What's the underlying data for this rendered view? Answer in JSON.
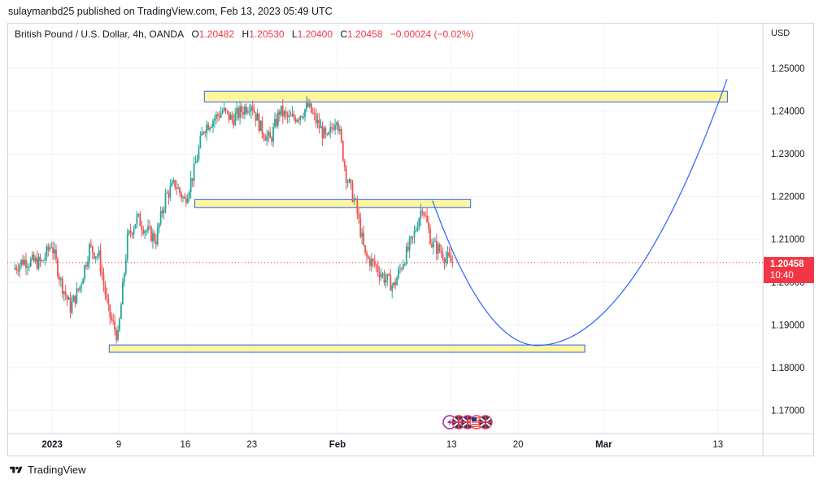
{
  "header": {
    "publisher_line": "sulaymanbd25 published on TradingView.com, Feb 13, 2023 05:49 UTC"
  },
  "legend": {
    "symbol": "British Pound / U.S. Dollar, 4h, OANDA",
    "open_label": "O",
    "open": "1.20482",
    "high_label": "H",
    "high": "1.20530",
    "low_label": "L",
    "low": "1.20400",
    "close_label": "C",
    "close": "1.20458",
    "change": "−0.00024 (−0.02%)"
  },
  "axis": {
    "currency": "USD",
    "current_price": "1.20458",
    "countdown": "10:40"
  },
  "footer": {
    "brand": "TradingView"
  },
  "event_icons": [
    "lightning-icon",
    "uk-flag-icon",
    "uk-flag-icon",
    "us-flag-icon",
    "uk-flag-icon"
  ],
  "colors": {
    "up": "#26a69a",
    "down": "#ef5350",
    "zone_fill": "#fff59d",
    "zone_border": "#2962ff",
    "projection": "#2962ff",
    "price_line": "#f23645"
  },
  "chart_data": {
    "type": "candlestick",
    "symbol": "GBPUSD",
    "timeframe": "4h",
    "ylim": [
      1.1646,
      1.2606
    ],
    "y_ticks": [
      1.17,
      1.18,
      1.19,
      1.2,
      1.21,
      1.22,
      1.23,
      1.24,
      1.25
    ],
    "y_tick_labels": [
      "1.17000",
      "1.18000",
      "1.19000",
      "1.20000",
      "1.21000",
      "1.22000",
      "1.23000",
      "1.24000",
      "1.25000"
    ],
    "x_ticks": [
      {
        "label": "2023",
        "date": "2023-01-02",
        "bold": true
      },
      {
        "label": "9",
        "date": "2023-01-09"
      },
      {
        "label": "16",
        "date": "2023-01-16"
      },
      {
        "label": "23",
        "date": "2023-01-23"
      },
      {
        "label": "Feb",
        "date": "2023-02-01",
        "bold": true
      },
      {
        "label": "13",
        "date": "2023-02-13"
      },
      {
        "label": "20",
        "date": "2023-02-20"
      },
      {
        "label": "Mar",
        "date": "2023-03-01",
        "bold": true
      },
      {
        "label": "13",
        "date": "2023-03-13"
      }
    ],
    "price_path": [
      [
        "2022-12-29",
        1.203
      ],
      [
        "2022-12-30",
        1.205
      ],
      [
        "2023-01-01",
        1.2045
      ],
      [
        "2023-01-02",
        1.209
      ],
      [
        "2023-01-03",
        1.2
      ],
      [
        "2023-01-04",
        1.194
      ],
      [
        "2023-01-05",
        1.199
      ],
      [
        "2023-01-06",
        1.208
      ],
      [
        "2023-01-07",
        1.206
      ],
      [
        "2023-01-08",
        1.193
      ],
      [
        "2023-01-09",
        1.187
      ],
      [
        "2023-01-10",
        1.21
      ],
      [
        "2023-01-11",
        1.215
      ],
      [
        "2023-01-12",
        1.212
      ],
      [
        "2023-01-13",
        1.21
      ],
      [
        "2023-01-14",
        1.22
      ],
      [
        "2023-01-15",
        1.223
      ],
      [
        "2023-01-16",
        1.219
      ],
      [
        "2023-01-17",
        1.226
      ],
      [
        "2023-01-18",
        1.236
      ],
      [
        "2023-01-19",
        1.238
      ],
      [
        "2023-01-20",
        1.24
      ],
      [
        "2023-01-21",
        1.238
      ],
      [
        "2023-01-22",
        1.24
      ],
      [
        "2023-01-23",
        1.242
      ],
      [
        "2023-01-24",
        1.236
      ],
      [
        "2023-01-25",
        1.233
      ],
      [
        "2023-01-26",
        1.24
      ],
      [
        "2023-01-27",
        1.238
      ],
      [
        "2023-01-28",
        1.239
      ],
      [
        "2023-01-29",
        1.241
      ],
      [
        "2023-01-30",
        1.237
      ],
      [
        "2023-01-31",
        1.233
      ],
      [
        "2023-02-01",
        1.239
      ],
      [
        "2023-02-02",
        1.225
      ],
      [
        "2023-02-03",
        1.218
      ],
      [
        "2023-02-04",
        1.206
      ],
      [
        "2023-02-05",
        1.204
      ],
      [
        "2023-02-06",
        1.201
      ],
      [
        "2023-02-07",
        1.199
      ],
      [
        "2023-02-08",
        1.205
      ],
      [
        "2023-02-09",
        1.21
      ],
      [
        "2023-02-10",
        1.218
      ],
      [
        "2023-02-11",
        1.209
      ],
      [
        "2023-02-12",
        1.207
      ],
      [
        "2023-02-13",
        1.2046
      ]
    ],
    "zones": [
      {
        "from": "2023-01-18",
        "to": "2023-03-14",
        "low": 1.2421,
        "high": 1.2446
      },
      {
        "from": "2023-01-17",
        "to": "2023-02-15",
        "low": 1.2174,
        "high": 1.2193
      },
      {
        "from": "2023-01-08",
        "to": "2023-02-27",
        "low": 1.1836,
        "high": 1.1853
      }
    ],
    "projection": {
      "from": [
        "2023-02-11",
        1.219
      ],
      "trough": [
        "2023-02-22",
        1.1852
      ],
      "to": [
        "2023-03-14",
        1.2477
      ]
    },
    "current_price": 1.20458
  }
}
